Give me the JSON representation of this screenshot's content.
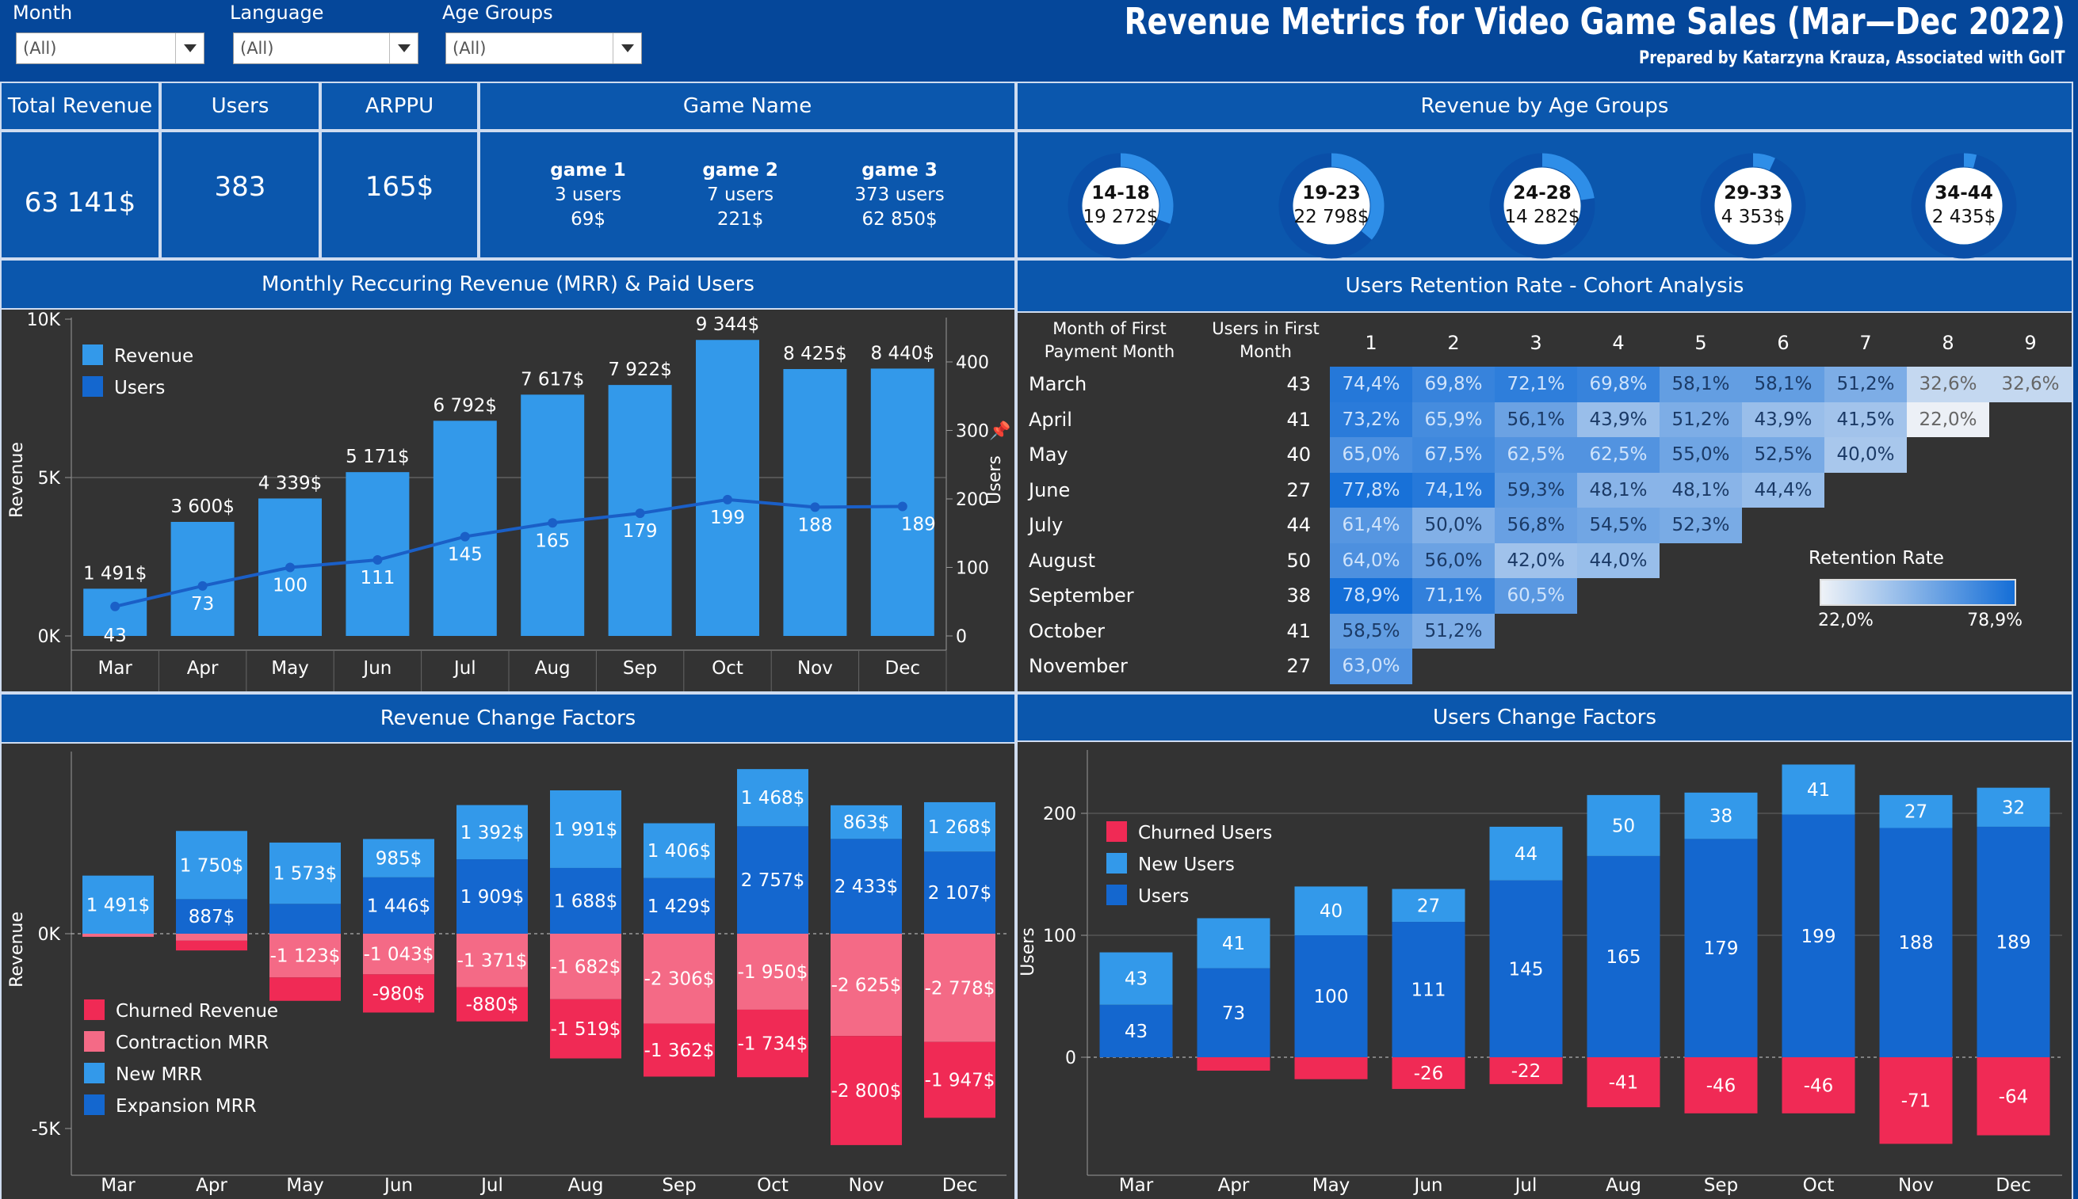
{
  "filters": [
    {
      "label": "Month",
      "value": "(All)"
    },
    {
      "label": "Language",
      "value": "(All)"
    },
    {
      "label": "Age Groups",
      "value": "(All)"
    }
  ],
  "header": {
    "title": "Revenue Metrics for Video Game Sales (Mar—Dec 2022)",
    "subtitle": "Prepared by Katarzyna Krauza, Associated with GoIT"
  },
  "kpis": {
    "total_revenue_label": "Total Revenue",
    "total_revenue": "63 141$",
    "users_label": "Users",
    "users": "383",
    "arppu_label": "ARPPU",
    "arppu": "165$",
    "game_name_label": "Game Name",
    "games": [
      {
        "name": "game 1",
        "users": "3 users",
        "revenue": "69$"
      },
      {
        "name": "game 2",
        "users": "7 users",
        "revenue": "221$"
      },
      {
        "name": "game 3",
        "users": "373 users",
        "revenue": "62 850$"
      }
    ]
  },
  "age_groups": {
    "title": "Revenue by Age Groups",
    "items": [
      {
        "group": "14-18",
        "revenue": "19 272$",
        "share": 0.305
      },
      {
        "group": "19-23",
        "revenue": "22 798$",
        "share": 0.361
      },
      {
        "group": "24-28",
        "revenue": "14 282$",
        "share": 0.226
      },
      {
        "group": "29-33",
        "revenue": "4 353$",
        "share": 0.069
      },
      {
        "group": "34-44",
        "revenue": "2 435$",
        "share": 0.039
      }
    ],
    "color_fill": "#2e8ee8",
    "color_track": "#0a4fa8"
  },
  "mrr": {
    "title": "Monthly Reccuring Revenue (MRR) & Paid Users",
    "legend": [
      "Revenue",
      "Users"
    ],
    "ylabel_left": "Revenue",
    "ylabel_right": "Users",
    "left_ticks": [
      "10K",
      "5K",
      "0K"
    ],
    "right_ticks": [
      "400",
      "300",
      "200",
      "100",
      "0"
    ]
  },
  "retention": {
    "title": "Users Retention Rate - Cohort Analysis",
    "col_month": "Month of First Payment Month",
    "col_month_l1": "Month of First",
    "col_month_l2": "Payment Month",
    "col_users_l1": "Users in First",
    "col_users_l2": "Month",
    "periods": [
      "1",
      "2",
      "3",
      "4",
      "5",
      "6",
      "7",
      "8",
      "9"
    ],
    "rows": [
      {
        "month": "March",
        "users": "43",
        "rates": [
          "74,4%",
          "69,8%",
          "72,1%",
          "69,8%",
          "58,1%",
          "58,1%",
          "51,2%",
          "32,6%",
          "32,6%"
        ]
      },
      {
        "month": "April",
        "users": "41",
        "rates": [
          "73,2%",
          "65,9%",
          "56,1%",
          "43,9%",
          "51,2%",
          "43,9%",
          "41,5%",
          "22,0%"
        ]
      },
      {
        "month": "May",
        "users": "40",
        "rates": [
          "65,0%",
          "67,5%",
          "62,5%",
          "62,5%",
          "55,0%",
          "52,5%",
          "40,0%"
        ]
      },
      {
        "month": "June",
        "users": "27",
        "rates": [
          "77,8%",
          "74,1%",
          "59,3%",
          "48,1%",
          "48,1%",
          "44,4%"
        ]
      },
      {
        "month": "July",
        "users": "44",
        "rates": [
          "61,4%",
          "50,0%",
          "56,8%",
          "54,5%",
          "52,3%"
        ]
      },
      {
        "month": "August",
        "users": "50",
        "rates": [
          "64,0%",
          "56,0%",
          "42,0%",
          "44,0%"
        ]
      },
      {
        "month": "September",
        "users": "38",
        "rates": [
          "78,9%",
          "71,1%",
          "60,5%"
        ]
      },
      {
        "month": "October",
        "users": "41",
        "rates": [
          "58,5%",
          "51,2%"
        ]
      },
      {
        "month": "November",
        "users": "27",
        "rates": [
          "63,0%"
        ]
      }
    ],
    "legend_title": "Retention Rate",
    "legend_min": "22,0%",
    "legend_max": "78,9%"
  },
  "rev_factors": {
    "title": "Revenue Change Factors",
    "ylabel": "Revenue",
    "ticks": [
      "0K",
      "-5K"
    ],
    "legend": [
      "Churned Revenue",
      "Contraction MRR",
      "New MRR",
      "Expansion MRR"
    ]
  },
  "user_factors": {
    "title": "Users Change Factors",
    "ylabel": "Users",
    "ticks": [
      "200",
      "100",
      "0"
    ],
    "legend": [
      "Churned Users",
      "New Users",
      "Users"
    ]
  },
  "colors": {
    "bar_light": "#3399ea",
    "bar_dark": "#1467cf",
    "line": "#1a5fc7",
    "churn": "#f02a55",
    "contraction": "#f46a86",
    "bg_dark": "#333333",
    "navy": "#05479a"
  },
  "chart_data": [
    {
      "type": "bar",
      "title": "Monthly Reccuring Revenue (MRR) & Paid Users",
      "categories": [
        "Mar",
        "Apr",
        "May",
        "Jun",
        "Jul",
        "Aug",
        "Sep",
        "Oct",
        "Nov",
        "Dec"
      ],
      "series": [
        {
          "name": "Revenue",
          "values": [
            1491,
            3600,
            4339,
            5171,
            6792,
            7617,
            7922,
            9344,
            8425,
            8440
          ],
          "labels": [
            "1 491$",
            "3 600$",
            "4 339$",
            "5 171$",
            "6 792$",
            "7 617$",
            "7 922$",
            "9 344$",
            "8 425$",
            "8 440$"
          ]
        },
        {
          "name": "Users",
          "values": [
            43,
            73,
            100,
            111,
            145,
            165,
            179,
            199,
            188,
            189
          ]
        }
      ],
      "ylabel": "Revenue",
      "y2label": "Users",
      "ylim": [
        0,
        10000
      ],
      "y2lim": [
        0,
        400
      ]
    },
    {
      "type": "bar",
      "title": "Revenue Change Factors",
      "categories": [
        "Mar",
        "Apr",
        "May",
        "Jun",
        "Jul",
        "Aug",
        "Sep",
        "Oct",
        "Nov",
        "Dec"
      ],
      "series": [
        {
          "name": "New MRR",
          "values": [
            1491,
            1750,
            1573,
            985,
            1392,
            1991,
            1406,
            1468,
            863,
            1268
          ],
          "labels": [
            "1 491$",
            "1 750$",
            "1 573$",
            "985$",
            "1 392$",
            "1 991$",
            "1 406$",
            "1 468$",
            "863$",
            "1 268$"
          ]
        },
        {
          "name": "Expansion MRR",
          "values": [
            0,
            887,
            766,
            1446,
            1909,
            1688,
            1429,
            2757,
            2433,
            2107
          ],
          "labels": [
            "",
            "887$",
            "",
            "1 446$",
            "1 909$",
            "1 688$",
            "1 429$",
            "2 757$",
            "2 433$",
            "2 107$"
          ]
        },
        {
          "name": "Contraction MRR",
          "values": [
            -80,
            -180,
            -1123,
            -1043,
            -1371,
            -1682,
            -2306,
            -1950,
            -2625,
            -2778
          ],
          "labels": [
            "",
            "",
            "-1 123$",
            "-1 043$",
            "-1 371$",
            "-1 682$",
            "-2 306$",
            "-1 950$",
            "-2 625$",
            "-2 778$"
          ]
        },
        {
          "name": "Churned Revenue",
          "values": [
            0,
            -250,
            -600,
            -980,
            -880,
            -1519,
            -1362,
            -1734,
            -2800,
            -1947
          ],
          "labels": [
            "",
            "",
            "",
            "-980$",
            "-880$",
            "-1 519$",
            "-1 362$",
            "-1 734$",
            "-2 800$",
            "-1 947$"
          ]
        }
      ],
      "ylabel": "Revenue",
      "ylim": [
        -6000,
        4200
      ]
    },
    {
      "type": "bar",
      "title": "Users Change Factors",
      "categories": [
        "Mar",
        "Apr",
        "May",
        "Jun",
        "Jul",
        "Aug",
        "Sep",
        "Oct",
        "Nov",
        "Dec"
      ],
      "series": [
        {
          "name": "Users",
          "values": [
            43,
            73,
            100,
            111,
            145,
            165,
            179,
            199,
            188,
            189
          ]
        },
        {
          "name": "New Users",
          "values": [
            43,
            41,
            40,
            27,
            44,
            50,
            38,
            41,
            27,
            32
          ]
        },
        {
          "name": "Churned Users",
          "values": [
            0,
            -11,
            -18,
            -26,
            -22,
            -41,
            -46,
            -46,
            -71,
            -64
          ],
          "labels": [
            "",
            "",
            "",
            "-26",
            "-22",
            "-41",
            "-46",
            "-46",
            "-71",
            "-64"
          ]
        }
      ],
      "ylabel": "Users",
      "ylim": [
        -80,
        245
      ]
    }
  ]
}
